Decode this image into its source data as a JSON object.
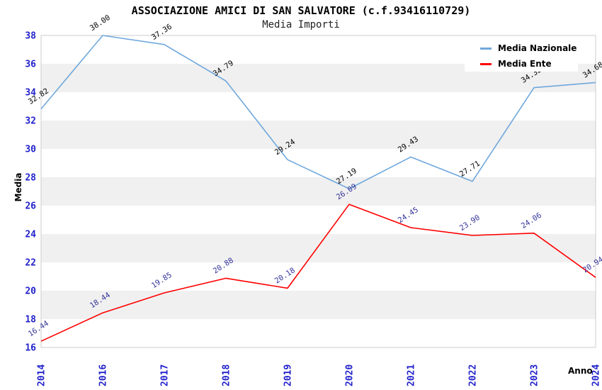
{
  "header": {
    "title": "ASSOCIAZIONE AMICI DI SAN SALVATORE (c.f.93416110729)",
    "subtitle": "Media Importi"
  },
  "legend": {
    "items": [
      {
        "label": "Media Nazionale",
        "color": "#6FA8DC"
      },
      {
        "label": "Media Ente",
        "color": "#FF0000"
      }
    ]
  },
  "chart_data": {
    "type": "line",
    "title": "ASSOCIAZIONE AMICI DI SAN SALVATORE (c.f.93416110729)",
    "subtitle": "Media Importi",
    "xlabel": "Anno",
    "ylabel": "Media",
    "x_categories": [
      "2014",
      "2016",
      "2017",
      "2018",
      "2019",
      "2020",
      "2021",
      "2022",
      "2023",
      "2024"
    ],
    "ylim": [
      16,
      38
    ],
    "y_tick_step": 2,
    "grid": "alternating horizontal bands",
    "legend_position": "top-right inside plot",
    "series": [
      {
        "name": "Media Nazionale",
        "color": "#6FA8DC",
        "label_color": "#000000",
        "values": [
          32.82,
          38.0,
          37.36,
          34.79,
          29.24,
          27.19,
          29.43,
          27.71,
          34.32,
          34.68
        ]
      },
      {
        "name": "Media Ente",
        "color": "#FF0000",
        "label_color": "#333399",
        "values": [
          16.44,
          18.44,
          19.85,
          20.88,
          20.18,
          26.09,
          24.45,
          23.9,
          24.06,
          20.94
        ]
      }
    ],
    "colors": {
      "tick_label": "#2222CC",
      "band_gray": "#F0F0F0",
      "band_white": "#FFFFFF",
      "plot_border": "#CCCCCC"
    }
  }
}
